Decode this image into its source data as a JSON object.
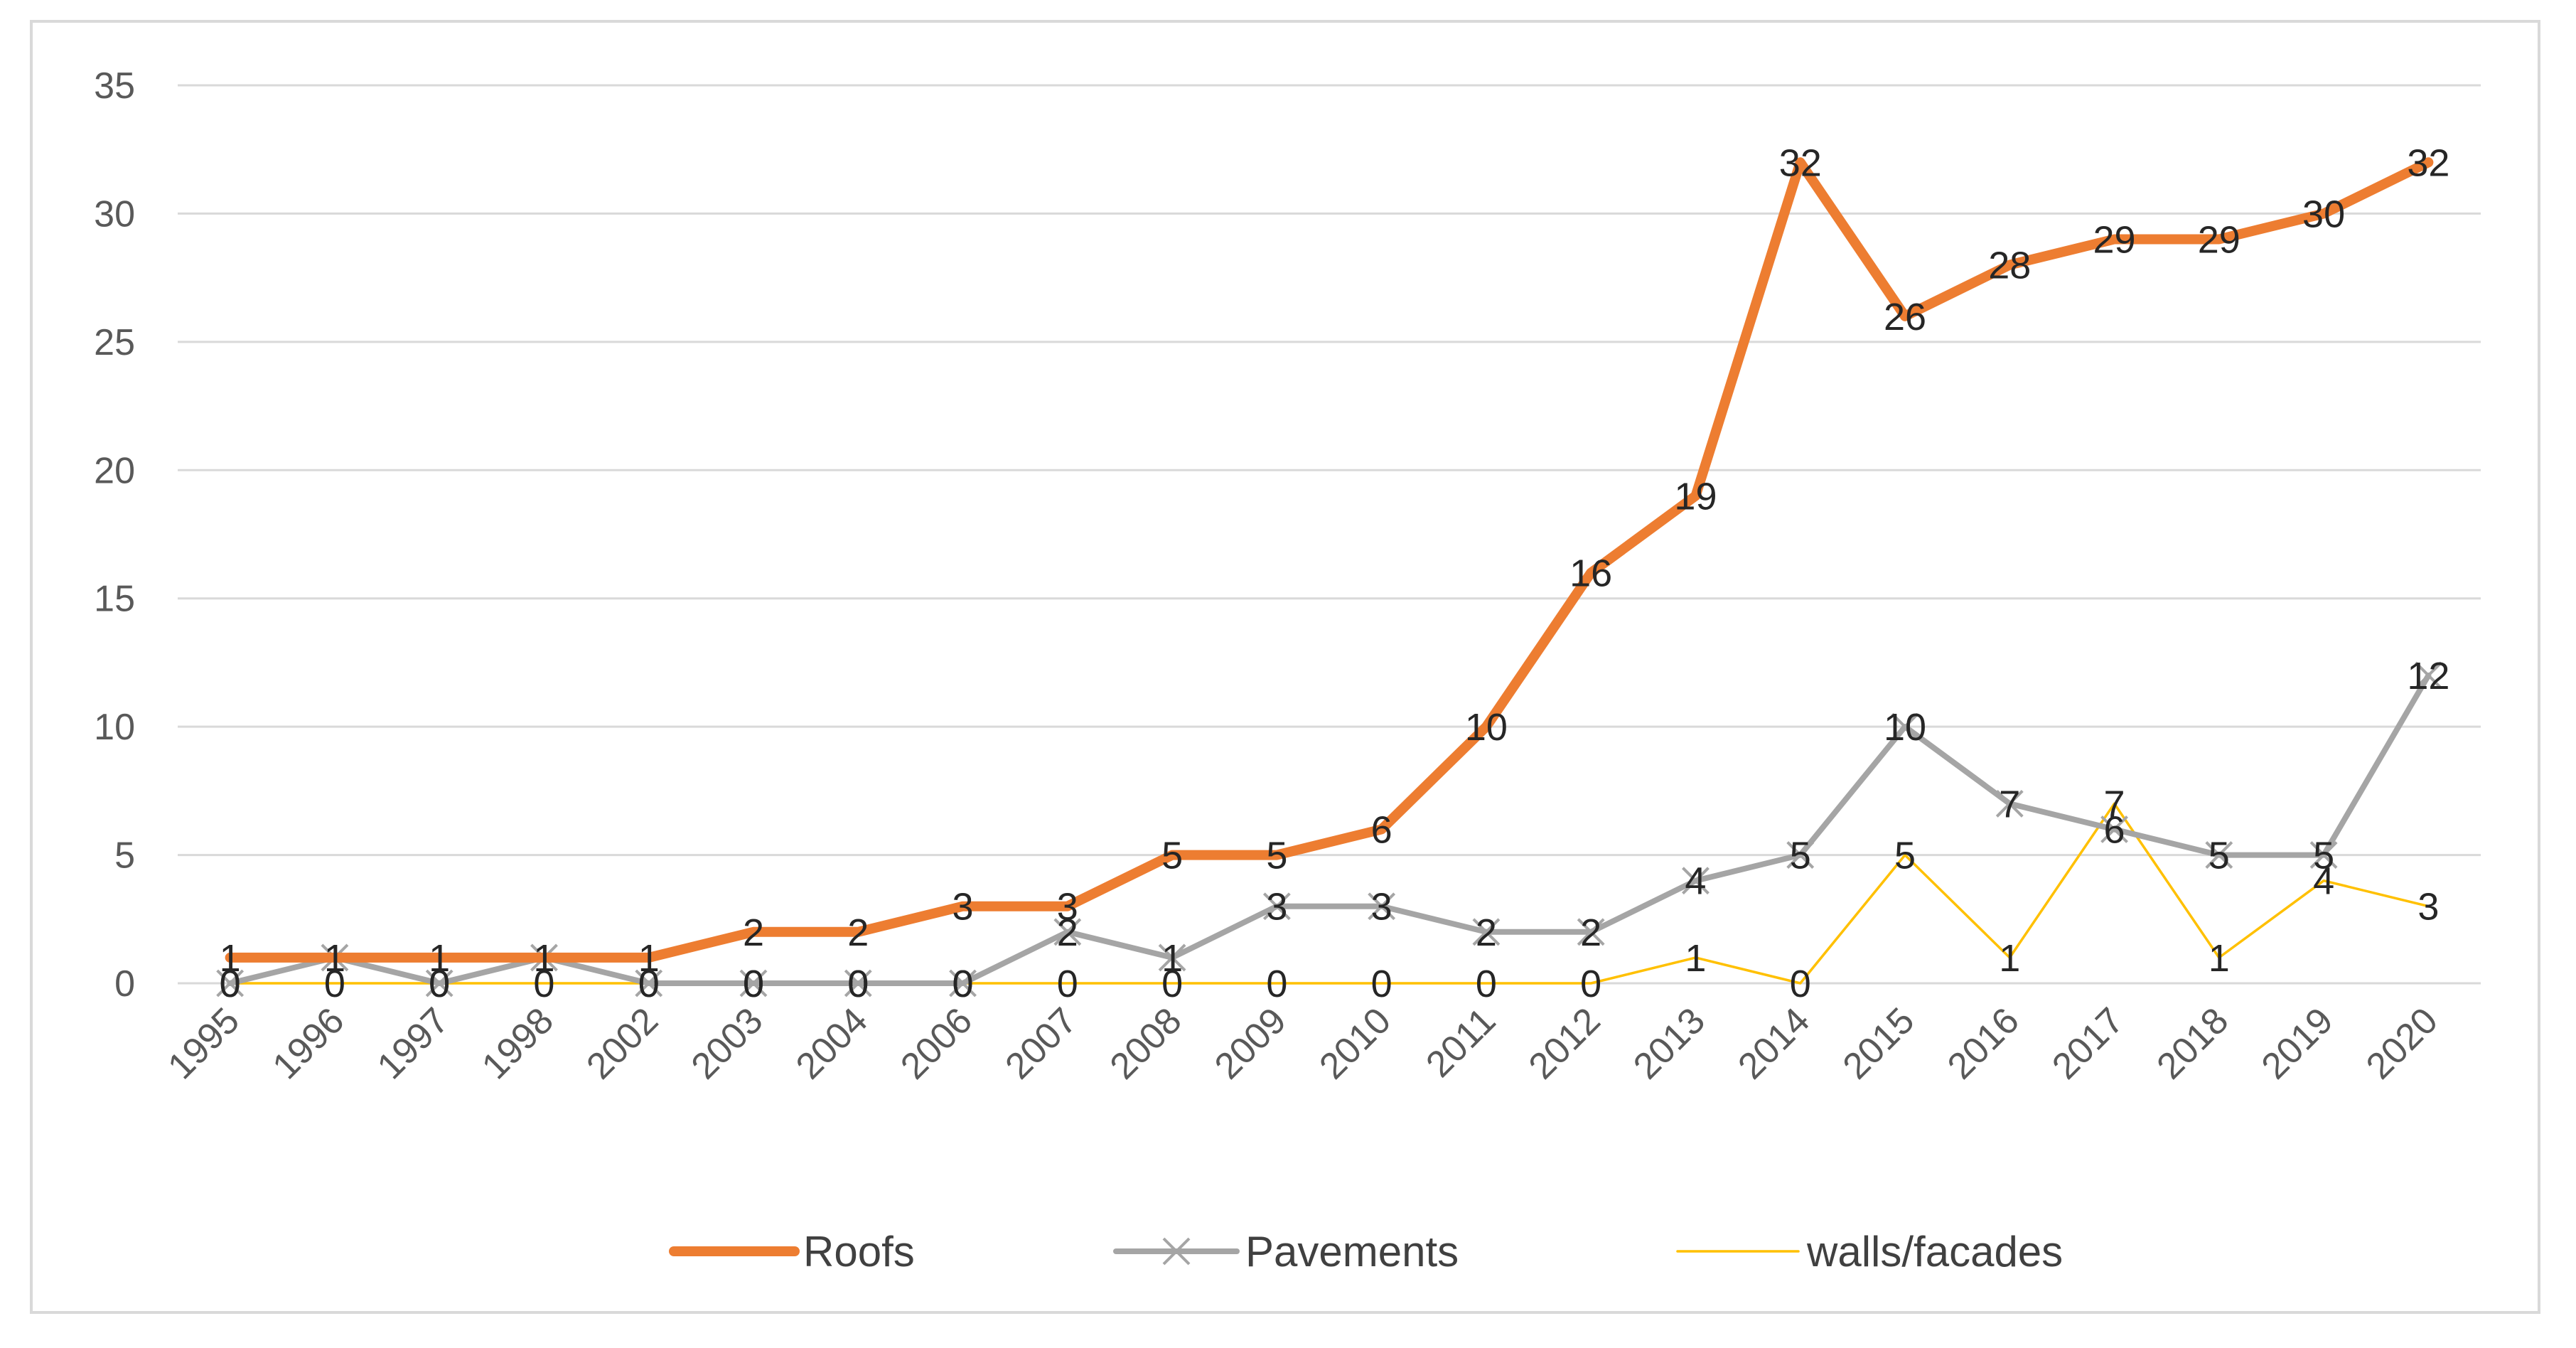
{
  "chart_data": {
    "type": "line",
    "title": "",
    "xlabel": "",
    "ylabel": "",
    "ylim": [
      0,
      35
    ],
    "yticks": [
      0,
      5,
      10,
      15,
      20,
      25,
      30,
      35
    ],
    "grid": true,
    "legend_position": "bottom",
    "categories": [
      "1995",
      "1996",
      "1997",
      "1998",
      "2002",
      "2003",
      "2004",
      "2006",
      "2007",
      "2008",
      "2009",
      "2010",
      "2011",
      "2012",
      "2013",
      "2014",
      "2015",
      "2016",
      "2017",
      "2018",
      "2019",
      "2020"
    ],
    "series": [
      {
        "name": "Roofs",
        "color": "#ed7d31",
        "marker": "none",
        "values": [
          1,
          1,
          1,
          1,
          1,
          2,
          2,
          3,
          3,
          5,
          5,
          6,
          10,
          16,
          19,
          32,
          26,
          28,
          29,
          29,
          30,
          32
        ]
      },
      {
        "name": "Pavements",
        "color": "#a5a5a5",
        "marker": "x",
        "values": [
          0,
          1,
          0,
          1,
          0,
          0,
          0,
          0,
          2,
          1,
          3,
          3,
          2,
          2,
          4,
          5,
          10,
          7,
          6,
          5,
          5,
          12
        ]
      },
      {
        "name": "walls/facades",
        "color": "#ffc000",
        "marker": "none",
        "values": [
          0,
          0,
          0,
          0,
          0,
          0,
          0,
          0,
          0,
          0,
          0,
          0,
          0,
          0,
          1,
          0,
          5,
          1,
          7,
          1,
          4,
          3
        ]
      }
    ]
  }
}
